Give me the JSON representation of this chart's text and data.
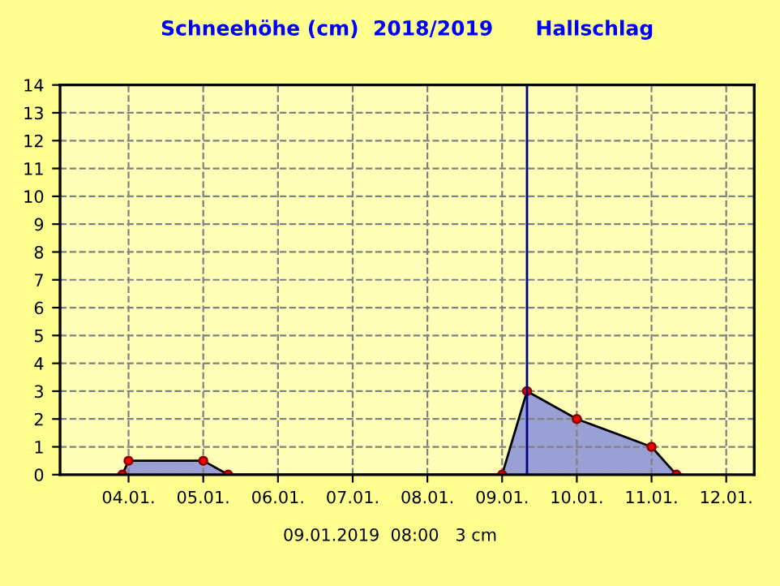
{
  "chart_data": {
    "type": "area",
    "title": "Schneehöhe (cm)  2018/2019      Hallschlag",
    "series": [
      {
        "color": "#7078e0",
        "x": [
          "2019-01-03T22:00",
          "2019-01-04T00:00",
          "2019-01-05T00:00",
          "2019-01-05T08:00",
          "2019-01-09T00:00",
          "2019-01-09T08:00",
          "2019-01-10T00:00",
          "2019-01-11T00:00",
          "2019-01-11T08:00"
        ],
        "values": [
          0,
          0.5,
          0.5,
          0,
          0,
          3,
          2,
          1,
          0
        ]
      }
    ],
    "xlim": [
      "2019-01-03T02:00",
      "2019-01-12T09:00"
    ],
    "xticks": [
      {
        "value": "2019-01-04",
        "label": "04.01."
      },
      {
        "value": "2019-01-05",
        "label": "05.01."
      },
      {
        "value": "2019-01-06",
        "label": "06.01."
      },
      {
        "value": "2019-01-07",
        "label": "07.01."
      },
      {
        "value": "2019-01-08",
        "label": "08.01."
      },
      {
        "value": "2019-01-09",
        "label": "09.01."
      },
      {
        "value": "2019-01-10",
        "label": "10.01."
      },
      {
        "value": "2019-01-11",
        "label": "11.01."
      },
      {
        "value": "2019-01-12",
        "label": "12.01."
      }
    ],
    "ylim": [
      0,
      14
    ],
    "yticks": [
      0,
      1,
      2,
      3,
      4,
      5,
      6,
      7,
      8,
      9,
      10,
      11,
      12,
      13,
      14
    ],
    "grid": true,
    "marker": "circle",
    "legend": false,
    "ref_lines": [
      {
        "axis": "x",
        "value": "2019-01-09T08:00",
        "color": "#000080"
      }
    ],
    "annotations": [
      "09.01.2019  08:00   3 cm"
    ]
  }
}
